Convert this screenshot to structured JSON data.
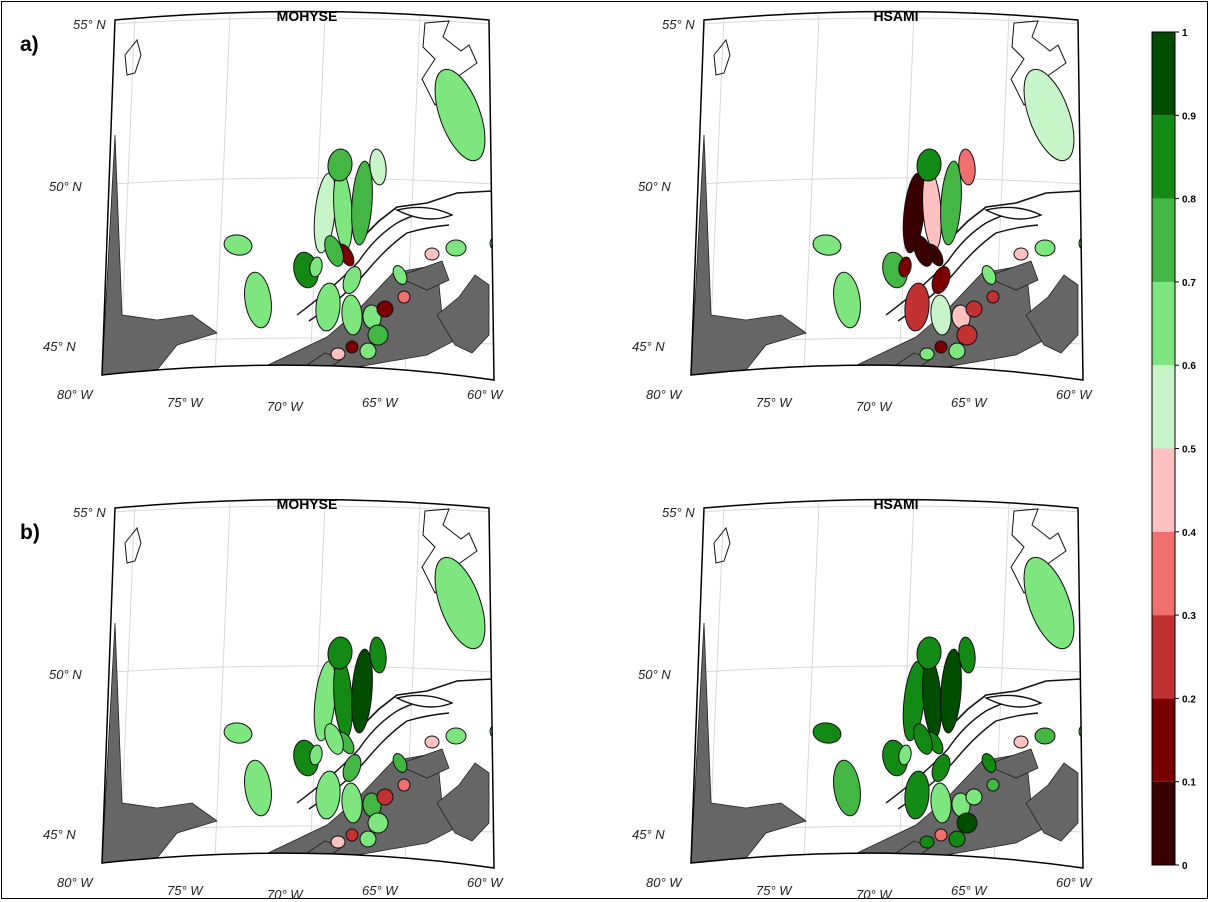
{
  "figure": {
    "panel_labels": [
      "a)",
      "b)"
    ],
    "map_titles": [
      "MOHYSE",
      "HSAMI",
      "MOHYSE",
      "HSAMI"
    ],
    "lat_labels": [
      "55° N",
      "50° N",
      "45° N"
    ],
    "lon_labels": [
      "80° W",
      "75° W",
      "70° W",
      "65° W",
      "60° W"
    ]
  },
  "colors": {
    "land_gray": "#666666",
    "water": "#ffffff",
    "border": "#000000",
    "grid": "#d9d9d9"
  },
  "colorbar": {
    "tick_labels": [
      "0",
      "0.1",
      "0.2",
      "0.3",
      "0.4",
      "0.5",
      "0.6",
      "0.7",
      "0.8",
      "0.9",
      "1"
    ],
    "colors": [
      "#3a0000",
      "#7a0000",
      "#c23232",
      "#f07070",
      "#ffc0c0",
      "#c8f5c8",
      "#7ee67e",
      "#44b644",
      "#138a13",
      "#004d00"
    ]
  },
  "maps": [
    {
      "title": "MOHYSE",
      "basin_values": [
        0.65,
        0.62,
        0.85,
        0.55,
        0.6,
        0.7,
        0.75,
        0.58,
        0.62,
        0.66,
        0.15,
        0.7,
        0.6,
        0.6,
        0.62,
        0.65,
        0.1,
        0.7,
        0.65,
        0.4,
        0.1,
        0.35,
        0.62,
        0.45,
        0.65,
        0.62,
        0.65,
        0.62,
        0.35,
        0.4
      ]
    },
    {
      "title": "HSAMI",
      "basin_values": [
        0.62,
        0.65,
        0.72,
        0.05,
        0.45,
        0.75,
        0.85,
        0.35,
        0.15,
        0.55,
        0.05,
        0.05,
        0.15,
        0.25,
        0.55,
        0.4,
        0.15,
        0.25,
        0.6,
        0.6,
        0.25,
        0.25,
        0.62,
        0.45,
        0.65,
        0.65,
        0.65,
        0.62,
        0.45,
        0.55
      ]
    },
    {
      "title": "MOHYSE",
      "basin_values": [
        0.62,
        0.65,
        0.85,
        0.65,
        0.85,
        0.92,
        0.85,
        0.85,
        0.72,
        0.65,
        0.75,
        0.62,
        0.65,
        0.65,
        0.65,
        0.75,
        0.25,
        0.62,
        0.65,
        0.45,
        0.25,
        0.35,
        0.75,
        0.45,
        0.65,
        0.65,
        0.65,
        0.65,
        0.35,
        0.4
      ]
    },
    {
      "title": "HSAMI",
      "basin_values": [
        0.85,
        0.72,
        0.85,
        0.85,
        0.95,
        0.92,
        0.85,
        0.85,
        0.85,
        0.65,
        0.85,
        0.85,
        0.62,
        0.85,
        0.62,
        0.65,
        0.35,
        0.92,
        0.85,
        0.85,
        0.65,
        0.75,
        0.85,
        0.45,
        0.75,
        0.65,
        0.75,
        0.65,
        0.65,
        0.65
      ]
    }
  ]
}
